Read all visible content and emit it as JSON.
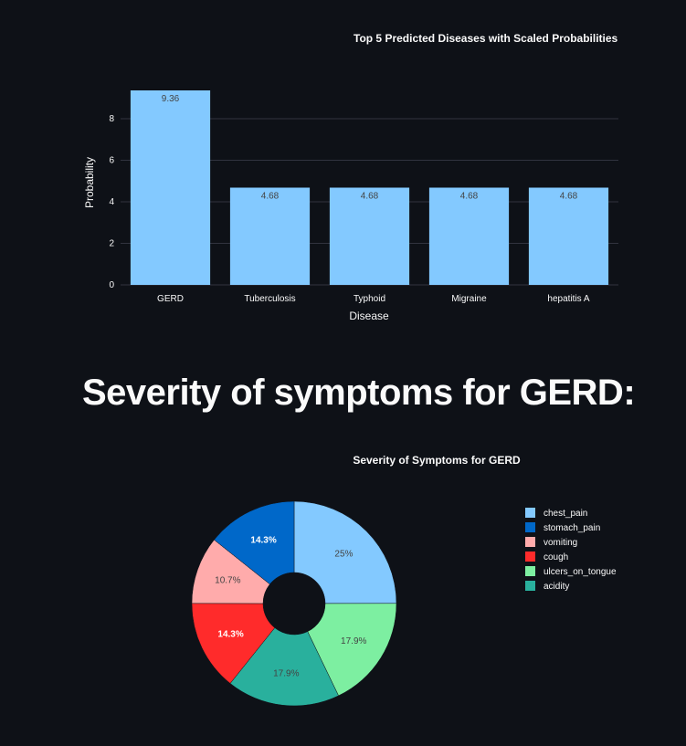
{
  "heading": "Severity of symptoms for GERD:",
  "chart_data": [
    {
      "type": "bar",
      "title": "Top 5 Predicted Diseases with Scaled Probabilities",
      "xlabel": "Disease",
      "ylabel": "Probability",
      "categories": [
        "GERD",
        "Tuberculosis",
        "Typhoid",
        "Migraine",
        "hepatitis A"
      ],
      "values": [
        9.36,
        4.68,
        4.68,
        4.68,
        4.68
      ],
      "value_labels": [
        "9.36",
        "4.68",
        "4.68",
        "4.68",
        "4.68"
      ],
      "ylim": [
        0,
        9.36
      ],
      "yticks": [
        0,
        2,
        4,
        6,
        8
      ],
      "grid": true,
      "colors": {
        "bar": "#83c9ff",
        "grid": "#31333f"
      }
    },
    {
      "type": "pie",
      "title": "Severity of Symptoms for GERD",
      "hole": true,
      "labels": [
        "chest_pain",
        "stomach_pain",
        "vomiting",
        "cough",
        "ulcers_on_tongue",
        "acidity"
      ],
      "legend_order": [
        "chest_pain",
        "stomach_pain",
        "vomiting",
        "cough",
        "ulcers_on_tongue",
        "acidity"
      ],
      "values": [
        25,
        14.3,
        10.7,
        14.3,
        17.9,
        17.9
      ],
      "slice_labels": [
        "25%",
        "14.3%",
        "10.7%",
        "14.3%",
        "17.9%",
        "17.9%"
      ],
      "slice_order": [
        "chest_pain",
        "ulcers_on_tongue",
        "acidity",
        "cough",
        "vomiting",
        "stomach_pain"
      ],
      "colors": {
        "chest_pain": "#83c9ff",
        "stomach_pain": "#0068c9",
        "vomiting": "#ffabab",
        "cough": "#ff2b2b",
        "ulcers_on_tongue": "#7defa1",
        "acidity": "#29b09d"
      },
      "legend_position": "right"
    }
  ]
}
